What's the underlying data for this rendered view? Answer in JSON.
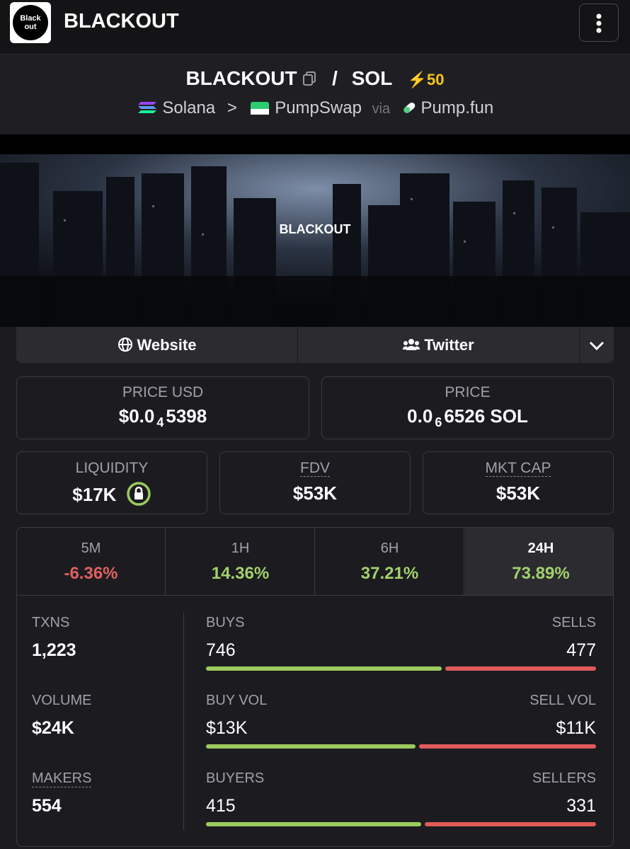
{
  "header": {
    "logo_lines": [
      "Black",
      "out"
    ],
    "title": "BLACKOUT"
  },
  "pair": {
    "base": "BLACKOUT",
    "separator": "/",
    "quote": "SOL",
    "boosts": 50
  },
  "route": {
    "chain": "Solana",
    "separator": ">",
    "dex": "PumpSwap",
    "via": "via",
    "launchpad": "Pump.fun"
  },
  "banner": {
    "title": "BLACKOUT"
  },
  "links": [
    "Website",
    "Twitter"
  ],
  "prices": [
    {
      "label": "PRICE USD",
      "lead": "$0.0",
      "zeros": 4,
      "digits": "5398"
    },
    {
      "label": "PRICE",
      "lead": "0.0",
      "zeros": 6,
      "digits": "6526 SOL"
    }
  ],
  "metrics": [
    {
      "label": "LIQUIDITY",
      "value": "$17K"
    },
    {
      "label": "FDV",
      "value": "$53K"
    },
    {
      "label": "MKT CAP",
      "value": "$53K"
    }
  ],
  "timeframes": [
    {
      "label": "5M",
      "change": "-6.36%"
    },
    {
      "label": "1H",
      "change": "14.36%"
    },
    {
      "label": "6H",
      "change": "37.21%"
    },
    {
      "label": "24H",
      "change": "73.89%"
    }
  ],
  "active_timeframe": 3,
  "stats": [
    {
      "label": "TXNS",
      "value": "1,223",
      "left_label": "BUYS",
      "left_value": 746,
      "right_label": "SELLS",
      "right_value": 477
    },
    {
      "label": "VOLUME",
      "value": "$24K",
      "left_label": "BUY VOL",
      "left_value": "$13K",
      "right_label": "SELL VOL",
      "right_value": "$11K"
    },
    {
      "label": "MAKERS",
      "value": 554,
      "left_label": "BUYERS",
      "left_value": 415,
      "right_label": "SELLERS",
      "right_value": 331
    }
  ]
}
